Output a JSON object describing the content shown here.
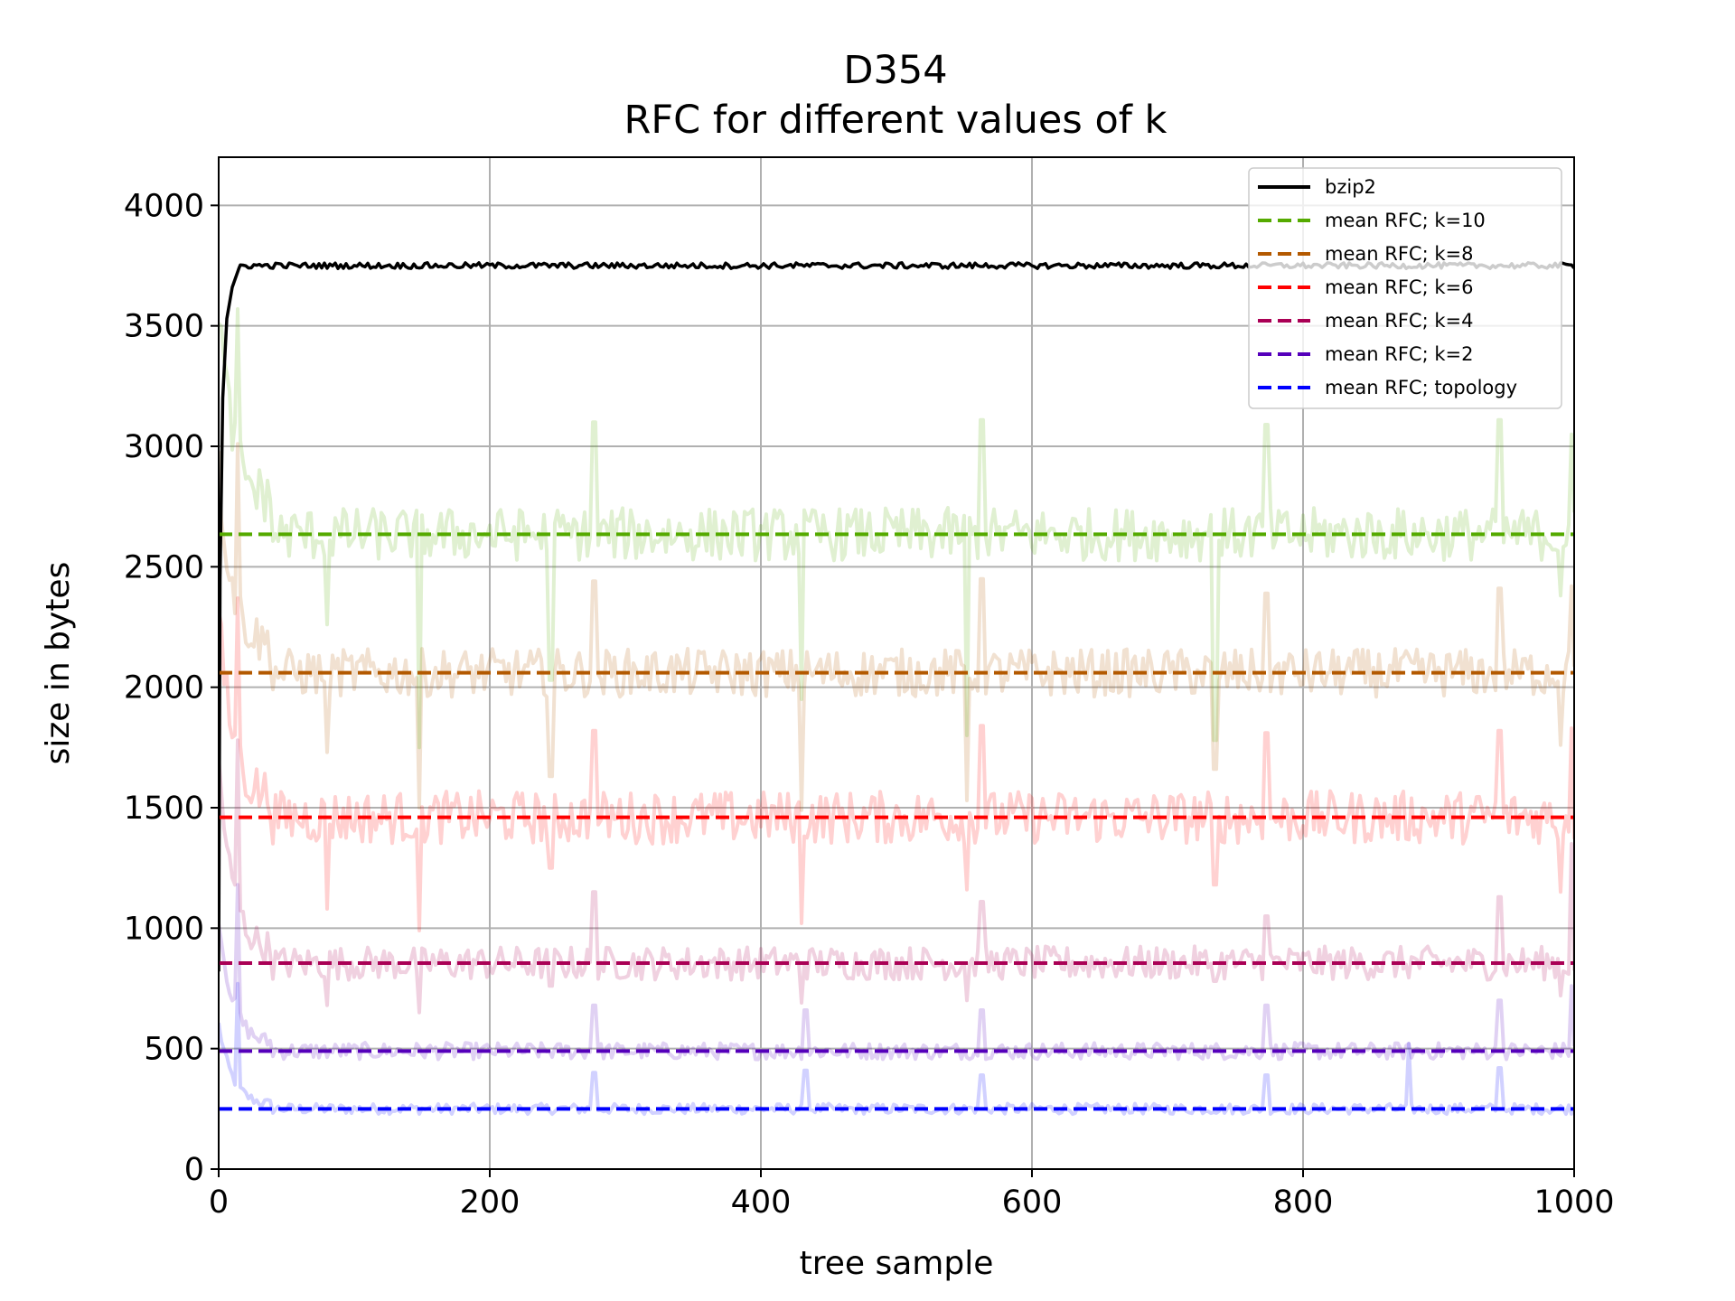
{
  "chart_data": {
    "type": "line",
    "title": "D354",
    "subtitle": "RFC for different values of k",
    "xlabel": "tree sample",
    "ylabel": "size in bytes",
    "xlim": [
      0,
      1000
    ],
    "ylim": [
      0,
      4200
    ],
    "xticks": [
      0,
      200,
      400,
      600,
      800,
      1000
    ],
    "yticks": [
      0,
      500,
      1000,
      1500,
      2000,
      2500,
      3000,
      3500,
      4000
    ],
    "grid": true,
    "legend_position": "top-right",
    "bzip2": {
      "name": "bzip2",
      "color": "#000000",
      "start": 820,
      "rise": [
        [
          1,
          2450
        ],
        [
          3,
          3200
        ],
        [
          6,
          3530
        ],
        [
          10,
          3660
        ],
        [
          15,
          3740
        ]
      ],
      "plateau": 3750,
      "noise": 12
    },
    "series": [
      {
        "name": "mean RFC; k=10",
        "color": "#55aa00",
        "mean": 2635,
        "noise": 110,
        "start": 3600,
        "spikes_up": [
          [
            14,
            3570
          ],
          [
            277,
            3180
          ],
          [
            563,
            3190
          ],
          [
            773,
            3170
          ],
          [
            945,
            3190
          ],
          [
            998,
            3050
          ]
        ],
        "spikes_down": [
          [
            80,
            2260
          ],
          [
            148,
            1750
          ],
          [
            245,
            1950
          ],
          [
            430,
            1950
          ],
          [
            552,
            1800
          ],
          [
            735,
            1700
          ],
          [
            990,
            2380
          ]
        ]
      },
      {
        "name": "mean RFC; k=8",
        "color": "#b35900",
        "mean": 2060,
        "noise": 100,
        "start": 2900,
        "spikes_up": [
          [
            14,
            3010
          ],
          [
            277,
            2520
          ],
          [
            563,
            2530
          ],
          [
            773,
            2470
          ],
          [
            945,
            2490
          ],
          [
            998,
            2420
          ]
        ],
        "spikes_down": [
          [
            80,
            1730
          ],
          [
            148,
            1500
          ],
          [
            245,
            1550
          ],
          [
            430,
            1490
          ],
          [
            552,
            1530
          ],
          [
            735,
            1580
          ],
          [
            990,
            1760
          ]
        ]
      },
      {
        "name": "mean RFC; k=6",
        "color": "#ff0000",
        "mean": 1460,
        "noise": 110,
        "start": 2300,
        "spikes_up": [
          [
            14,
            2370
          ],
          [
            277,
            1900
          ],
          [
            563,
            1920
          ],
          [
            773,
            1890
          ],
          [
            945,
            1900
          ],
          [
            998,
            1830
          ]
        ],
        "spikes_down": [
          [
            80,
            1080
          ],
          [
            148,
            990
          ],
          [
            245,
            1170
          ],
          [
            430,
            1020
          ],
          [
            552,
            1160
          ],
          [
            735,
            1100
          ],
          [
            990,
            1150
          ]
        ]
      },
      {
        "name": "mean RFC; k=4",
        "color": "#aa0055",
        "mean": 855,
        "noise": 70,
        "start": 1700,
        "spikes_up": [
          [
            14,
            1780
          ],
          [
            277,
            1230
          ],
          [
            563,
            1190
          ],
          [
            773,
            1130
          ],
          [
            945,
            1210
          ],
          [
            998,
            1350
          ]
        ],
        "spikes_down": [
          [
            80,
            680
          ],
          [
            148,
            650
          ],
          [
            245,
            680
          ],
          [
            430,
            690
          ],
          [
            552,
            700
          ],
          [
            735,
            700
          ],
          [
            990,
            720
          ]
        ]
      },
      {
        "name": "mean RFC; k=2",
        "color": "#5500bb",
        "mean": 490,
        "noise": 35,
        "start": 1050,
        "spikes_up": [
          [
            14,
            1180
          ],
          [
            277,
            760
          ],
          [
            433,
            740
          ],
          [
            563,
            740
          ],
          [
            773,
            760
          ],
          [
            945,
            780
          ],
          [
            998,
            760
          ]
        ],
        "spikes_down": []
      },
      {
        "name": "mean RFC; topology",
        "color": "#0000ff",
        "mean": 250,
        "noise": 22,
        "start": 600,
        "spikes_up": [
          [
            14,
            770
          ],
          [
            277,
            480
          ],
          [
            433,
            490
          ],
          [
            563,
            470
          ],
          [
            773,
            470
          ],
          [
            878,
            520
          ],
          [
            945,
            500
          ]
        ],
        "spikes_down": []
      }
    ]
  }
}
